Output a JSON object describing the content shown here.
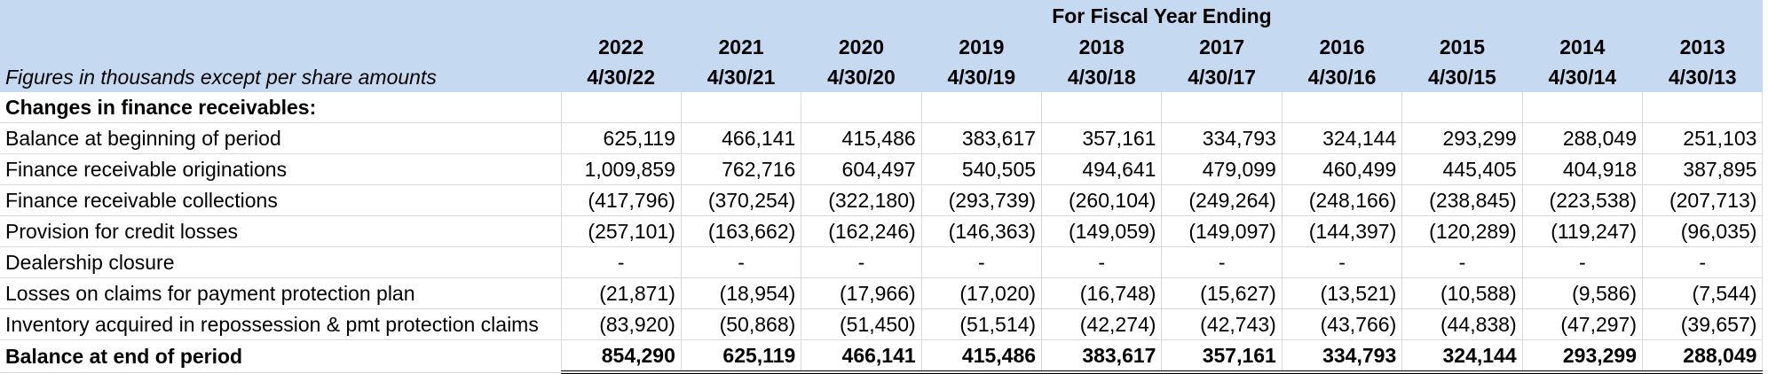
{
  "header": {
    "super_title": "For Fiscal Year Ending",
    "caption": "Figures in thousands except per share amounts",
    "years": [
      "2022",
      "2021",
      "2020",
      "2019",
      "2018",
      "2017",
      "2016",
      "2015",
      "2014",
      "2013"
    ],
    "dates": [
      "4/30/22",
      "4/30/21",
      "4/30/20",
      "4/30/19",
      "4/30/18",
      "4/30/17",
      "4/30/16",
      "4/30/15",
      "4/30/14",
      "4/30/13"
    ]
  },
  "section_title": "Changes in finance receivables:",
  "rows": [
    {
      "label": "Balance at beginning of period",
      "values": [
        "625,119",
        "466,141",
        "415,486",
        "383,617",
        "357,161",
        "334,793",
        "324,144",
        "293,299",
        "288,049",
        "251,103"
      ]
    },
    {
      "label": "Finance receivable originations",
      "values": [
        "1,009,859",
        "762,716",
        "604,497",
        "540,505",
        "494,641",
        "479,099",
        "460,499",
        "445,405",
        "404,918",
        "387,895"
      ]
    },
    {
      "label": "Finance receivable collections",
      "values": [
        "(417,796)",
        "(370,254)",
        "(322,180)",
        "(293,739)",
        "(260,104)",
        "(249,264)",
        "(248,166)",
        "(238,845)",
        "(223,538)",
        "(207,713)"
      ]
    },
    {
      "label": "Provision for credit losses",
      "values": [
        "(257,101)",
        "(163,662)",
        "(162,246)",
        "(146,363)",
        "(149,059)",
        "(149,097)",
        "(144,397)",
        "(120,289)",
        "(119,247)",
        "(96,035)"
      ]
    },
    {
      "label": "Dealership closure",
      "values": [
        "-",
        "-",
        "-",
        "-",
        "-",
        "-",
        "-",
        "-",
        "-",
        "-"
      ]
    },
    {
      "label": "Losses on claims for payment protection plan",
      "values": [
        "(21,871)",
        "(18,954)",
        "(17,966)",
        "(17,020)",
        "(16,748)",
        "(15,627)",
        "(13,521)",
        "(10,588)",
        "(9,586)",
        "(7,544)"
      ]
    },
    {
      "label": "Inventory acquired in repossession & pmt protection claims",
      "values": [
        "(83,920)",
        "(50,868)",
        "(51,450)",
        "(51,514)",
        "(42,274)",
        "(42,743)",
        "(43,766)",
        "(44,838)",
        "(47,297)",
        "(39,657)"
      ]
    }
  ],
  "total": {
    "label": "Balance at end of period",
    "values": [
      "854,290",
      "625,119",
      "466,141",
      "415,486",
      "383,617",
      "357,161",
      "334,793",
      "324,144",
      "293,299",
      "288,049"
    ]
  }
}
